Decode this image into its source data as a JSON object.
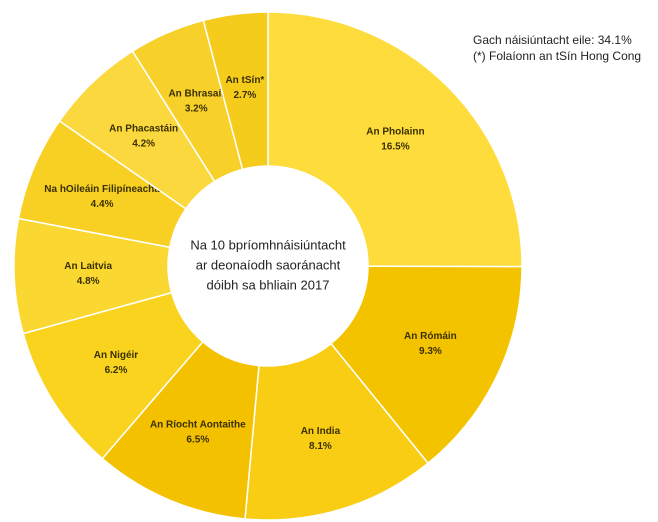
{
  "chart_data": {
    "type": "donut",
    "center_text": [
      "Na 10 bpríomhnáisiúntacht",
      "ar deonaíodh saoránacht",
      "dóibh sa bhliain 2017"
    ],
    "categories": [
      "An Pholainn",
      "An Rómáin",
      "An India",
      "An Ríocht Aontaithe",
      "An Nigéir",
      "An Laitvia",
      "Na hOileáin Filipíneacha",
      "An Phacastáin",
      "An Bhrasaíl",
      "An tSín*"
    ],
    "values": [
      16.5,
      9.3,
      8.1,
      6.5,
      6.2,
      4.8,
      4.4,
      4.2,
      3.2,
      2.7
    ],
    "value_labels": [
      "16.5%",
      "9.3%",
      "8.1%",
      "6.5%",
      "6.2%",
      "4.8%",
      "4.4%",
      "4.2%",
      "3.2%",
      "2.7%"
    ],
    "colors": [
      "#fddc3c",
      "#f4c300",
      "#f8cd14",
      "#f3c100",
      "#f9d31e",
      "#fbd732",
      "#f8d024",
      "#fbd93e",
      "#f7d02a",
      "#f6cc1c"
    ],
    "annotations": [
      "Gach náisiúntacht eile: 34.1%",
      "(*) Folaíonn an tSín Hong Cong"
    ]
  }
}
